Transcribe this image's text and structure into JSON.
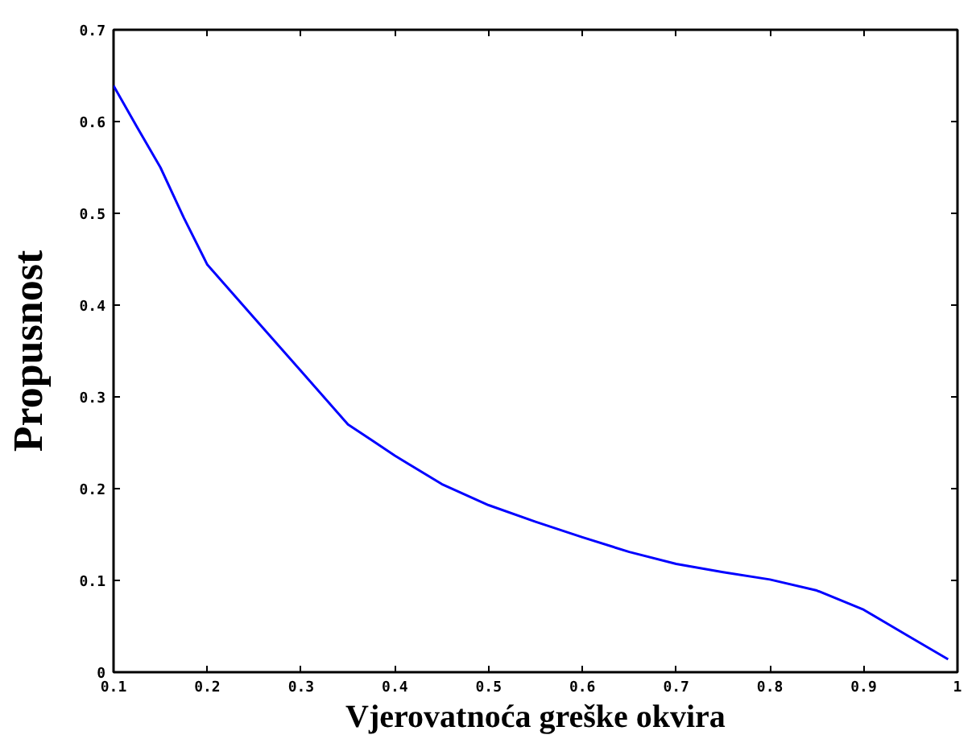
{
  "chart_data": {
    "type": "line",
    "xlabel": "Vjerovatnoća greške okvira",
    "ylabel": "Propusnost",
    "xlim": [
      0.1,
      1
    ],
    "ylim": [
      0,
      0.7
    ],
    "xticks": [
      0.1,
      0.2,
      0.3,
      0.4,
      0.5,
      0.6,
      0.7,
      0.8,
      0.9,
      1
    ],
    "yticks": [
      0,
      0.1,
      0.2,
      0.3,
      0.4,
      0.5,
      0.6,
      0.7
    ],
    "grid": false,
    "series": [
      {
        "color": "#0000ff",
        "x": [
          0.1,
          0.125,
          0.15,
          0.175,
          0.2,
          0.25,
          0.3,
          0.35,
          0.375,
          0.4,
          0.45,
          0.5,
          0.55,
          0.6,
          0.65,
          0.7,
          0.75,
          0.8,
          0.85,
          0.9,
          0.95,
          0.99
        ],
        "values": [
          0.639,
          0.594,
          0.55,
          0.495,
          0.444,
          0.386,
          0.328,
          0.27,
          0.253,
          0.236,
          0.205,
          0.182,
          0.164,
          0.147,
          0.131,
          0.118,
          0.109,
          0.101,
          0.089,
          0.068,
          0.038,
          0.014
        ]
      }
    ]
  }
}
